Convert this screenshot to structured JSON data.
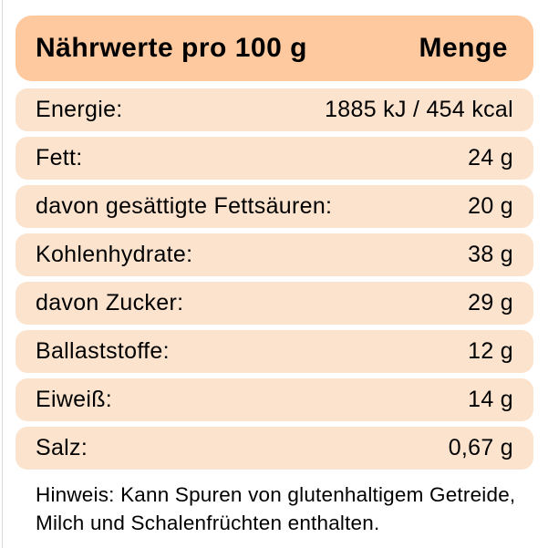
{
  "colors": {
    "header_bg": "#FEC99E",
    "row_bg": "#FCE3CE",
    "text": "#000000",
    "page_bg": "#FFFFFF"
  },
  "header": {
    "title": "Nährwerte pro 100 g",
    "amount_label": "Menge"
  },
  "table": {
    "rows": [
      {
        "label": "Energie:",
        "value": "1885 kJ / 454 kcal"
      },
      {
        "label": "Fett:",
        "value": "24 g"
      },
      {
        "label": "davon gesättigte Fettsäuren:",
        "value": "20 g"
      },
      {
        "label": "Kohlenhydrate:",
        "value": "38 g"
      },
      {
        "label": "davon Zucker:",
        "value": "29 g"
      },
      {
        "label": "Ballaststoffe:",
        "value": "12 g"
      },
      {
        "label": "Eiweiß:",
        "value": "14 g"
      },
      {
        "label": "Salz:",
        "value": "0,67 g"
      }
    ]
  },
  "footer": {
    "lines": [
      "Hinweis: Kann Spuren von glutenhaltigem Getreide,",
      "Milch und Schalenfrüchten enthalten."
    ]
  }
}
